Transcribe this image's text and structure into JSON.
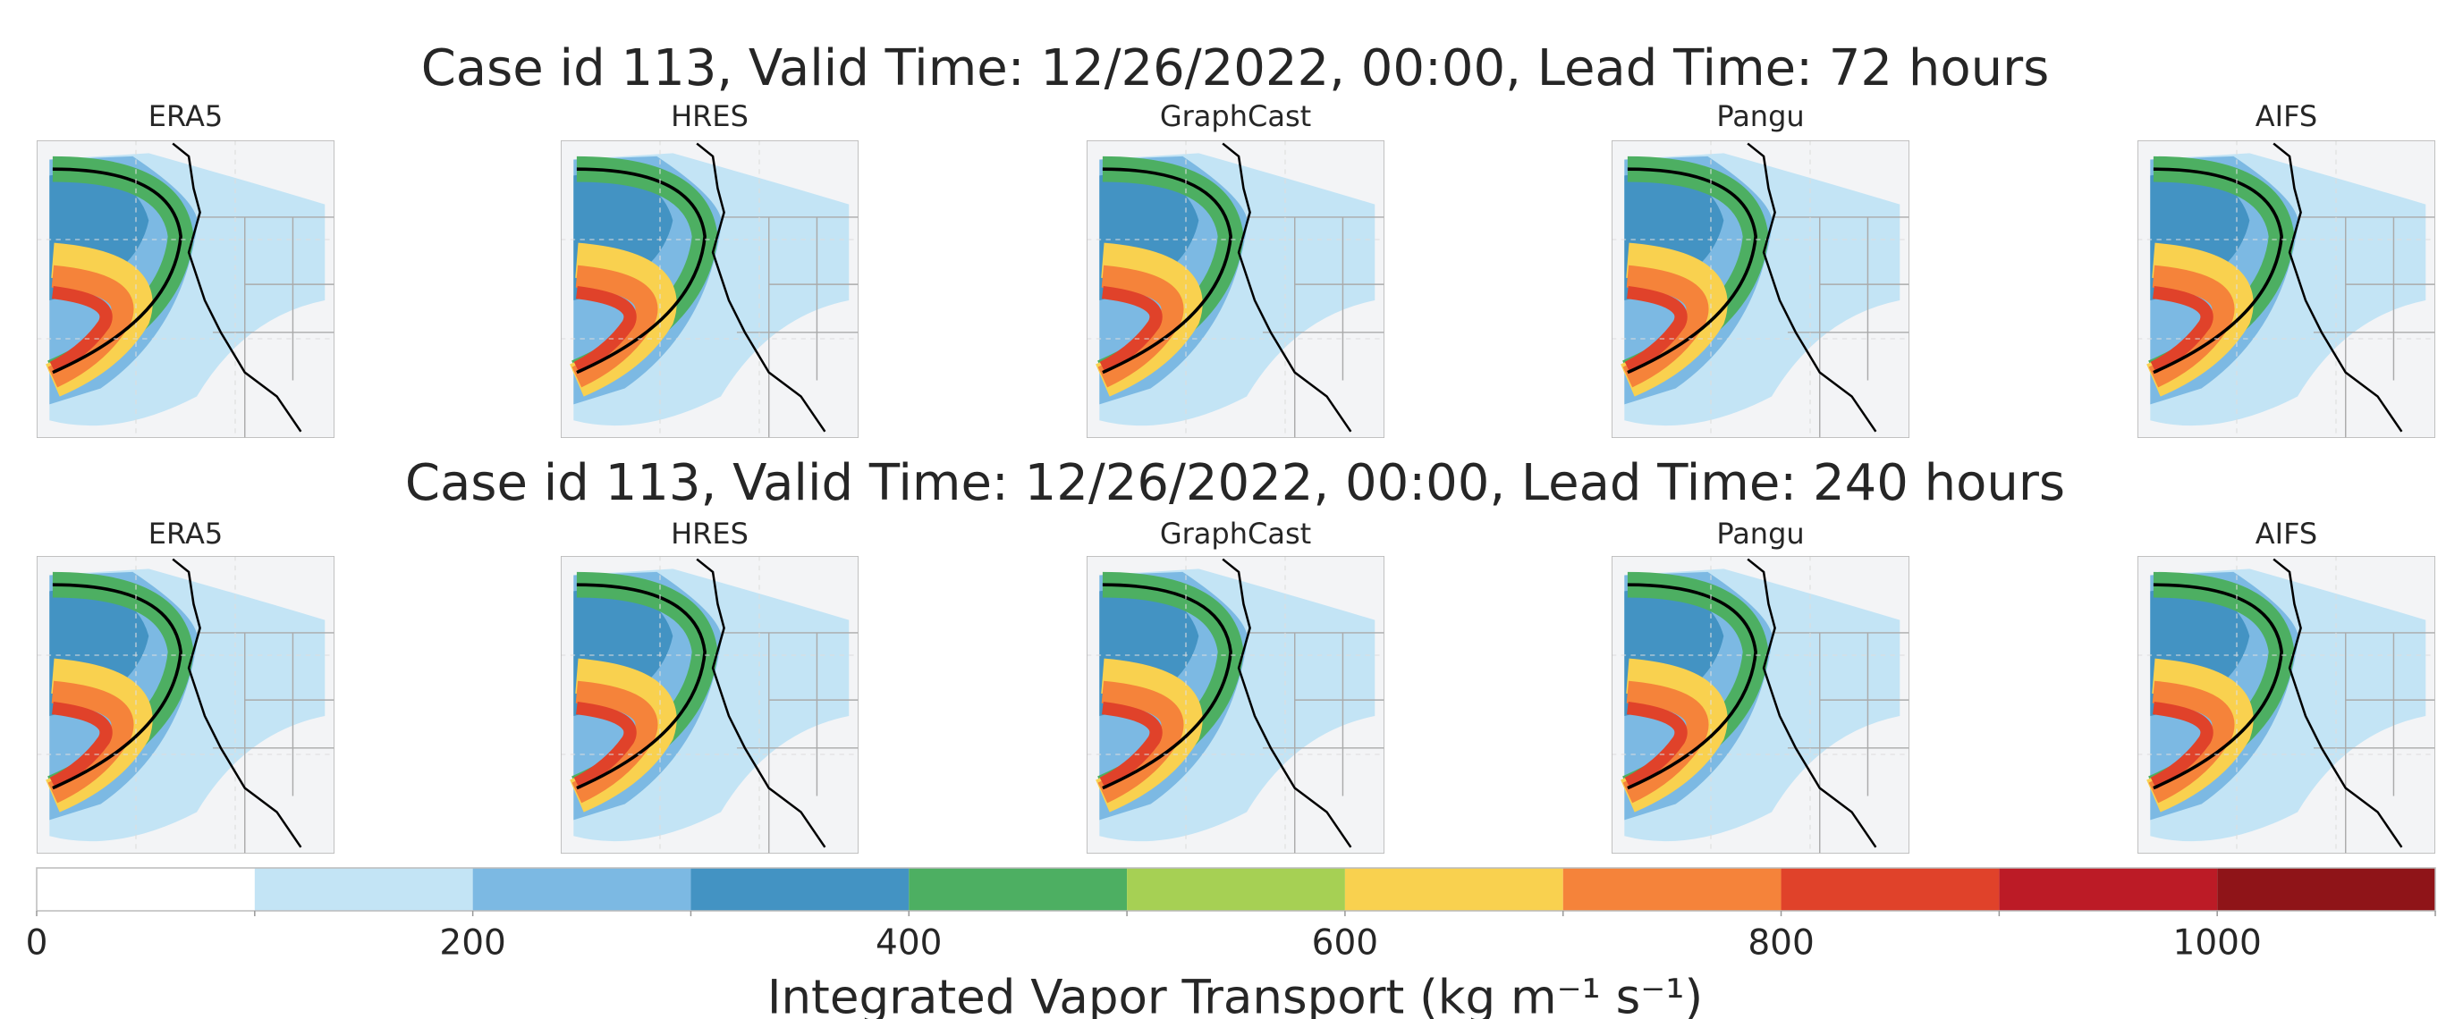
{
  "rows": [
    {
      "title": "Case id 113, Valid Time: 12/26/2022, 00:00, Lead Time: 72 hours",
      "panels": [
        "ERA5",
        "HRES",
        "GraphCast",
        "Pangu",
        "AIFS"
      ]
    },
    {
      "title": "Case id 113, Valid Time: 12/26/2022, 00:00, Lead Time: 240 hours",
      "panels": [
        "ERA5",
        "HRES",
        "GraphCast",
        "Pangu",
        "AIFS"
      ]
    }
  ],
  "colorbar": {
    "bounds": [
      0,
      100,
      200,
      300,
      400,
      500,
      600,
      700,
      800,
      900,
      1000,
      1100
    ],
    "colors": [
      "#ffffff",
      "#c3e4f5",
      "#7cb9e3",
      "#4393c3",
      "#4daf62",
      "#a6d054",
      "#f9d14f",
      "#f5833a",
      "#e0422a",
      "#bc1b26",
      "#8f1418"
    ],
    "ticks": [
      0,
      200,
      400,
      600,
      800,
      1000
    ],
    "label": "Integrated Vapor Transport (kg m⁻¹ s⁻¹)"
  }
}
